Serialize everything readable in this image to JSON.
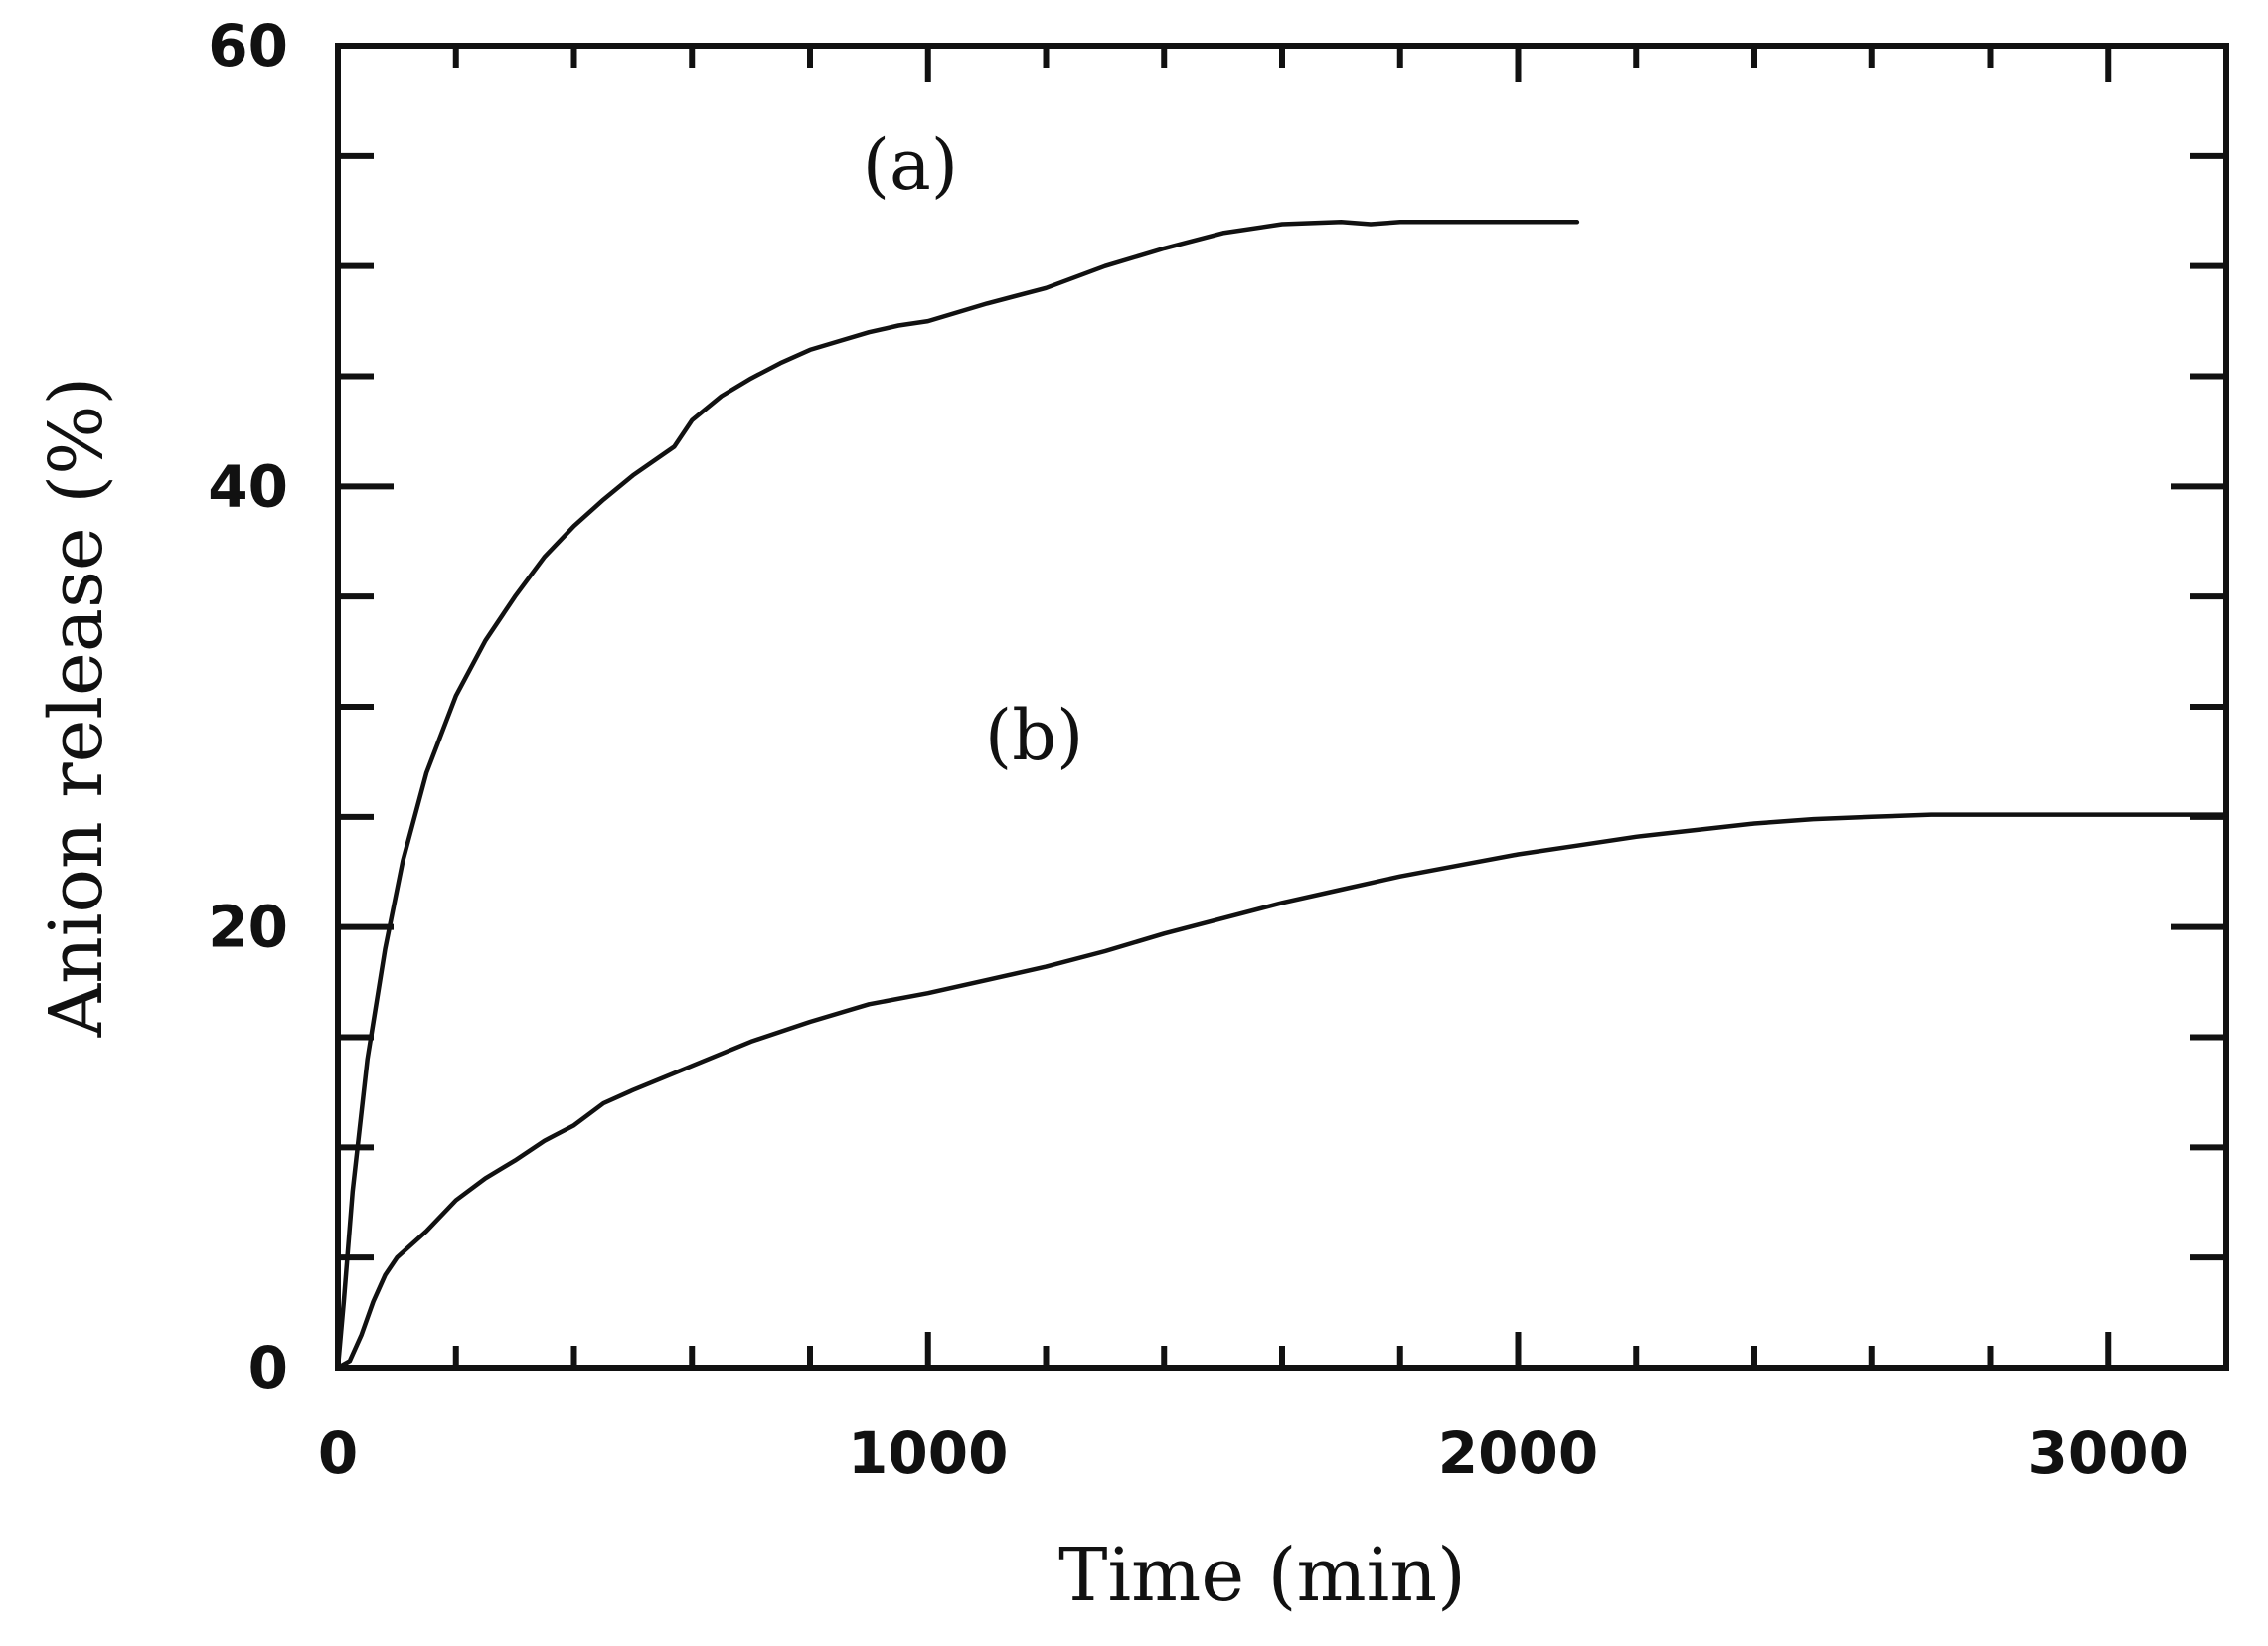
{
  "chart_data": {
    "type": "line",
    "xlabel": "Time (min)",
    "ylabel": "Anion release (%)",
    "xlim": [
      0,
      3200
    ],
    "ylim": [
      0,
      60
    ],
    "x_ticks": [
      0,
      1000,
      2000,
      3000
    ],
    "y_ticks": [
      0,
      20,
      40,
      60
    ],
    "x_minor_step": 200,
    "y_minor_step": 5,
    "grid": false,
    "series": [
      {
        "name": "(a)",
        "x": [
          0,
          10,
          25,
          50,
          80,
          110,
          150,
          200,
          250,
          300,
          350,
          400,
          450,
          500,
          570,
          600,
          650,
          700,
          750,
          800,
          850,
          900,
          950,
          1000,
          1100,
          1200,
          1300,
          1400,
          1500,
          1600,
          1700,
          1750,
          1800,
          1900,
          2000,
          2100
        ],
        "y": [
          0,
          3,
          8,
          14,
          19,
          23,
          27,
          30.5,
          33,
          35,
          36.8,
          38.2,
          39.4,
          40.5,
          41.8,
          43,
          44.1,
          44.9,
          45.6,
          46.2,
          46.6,
          47,
          47.3,
          47.5,
          48.3,
          49,
          50,
          50.8,
          51.5,
          51.9,
          52,
          51.9,
          52,
          52,
          52,
          52
        ]
      },
      {
        "name": "(b)",
        "x": [
          0,
          20,
          40,
          60,
          80,
          100,
          150,
          200,
          250,
          300,
          350,
          400,
          450,
          500,
          600,
          700,
          800,
          900,
          1000,
          1100,
          1200,
          1300,
          1400,
          1500,
          1600,
          1700,
          1800,
          1900,
          2000,
          2100,
          2200,
          2300,
          2400,
          2500,
          2600,
          2700,
          2800,
          3000,
          3200
        ],
        "y": [
          0,
          0.3,
          1.5,
          3,
          4.2,
          5,
          6.2,
          7.6,
          8.6,
          9.4,
          10.3,
          11,
          12,
          12.6,
          13.7,
          14.8,
          15.7,
          16.5,
          17,
          17.6,
          18.2,
          18.9,
          19.7,
          20.4,
          21.1,
          21.7,
          22.3,
          22.8,
          23.3,
          23.7,
          24.1,
          24.4,
          24.7,
          24.9,
          25,
          25.1,
          25.1,
          25.1,
          25.1
        ]
      }
    ],
    "annotations": [
      {
        "text": "(a)",
        "x": 970,
        "y": 53.5
      },
      {
        "text": "(b)",
        "x": 1180,
        "y": 27.6
      }
    ]
  }
}
